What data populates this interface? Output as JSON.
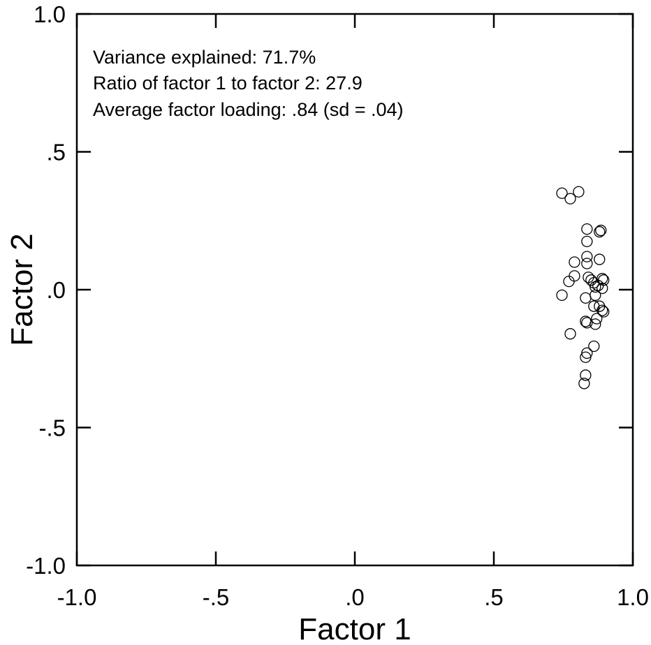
{
  "chart_data": {
    "type": "scatter",
    "xlabel": "Factor 1",
    "ylabel": "Factor 2",
    "xlim": [
      -1.0,
      1.0
    ],
    "ylim": [
      -1.0,
      1.0
    ],
    "x_ticks": [
      -1.0,
      -0.5,
      0.0,
      0.5,
      1.0
    ],
    "y_ticks": [
      -1.0,
      -0.5,
      0.0,
      0.5,
      1.0
    ],
    "x_tick_labels": [
      "-1.0",
      "-.5",
      ".0",
      ".5",
      "1.0"
    ],
    "y_tick_labels": [
      "-1.0",
      "-.5",
      ".0",
      ".5",
      "1.0"
    ],
    "grid": false,
    "annotations": [
      "Variance explained: 71.7%",
      "Ratio of factor 1 to factor 2: 27.9",
      "Average factor loading: .84 (sd = .04)"
    ],
    "marker": "open-circle",
    "points": [
      {
        "x": 0.745,
        "y": 0.35
      },
      {
        "x": 0.775,
        "y": 0.33
      },
      {
        "x": 0.805,
        "y": 0.355
      },
      {
        "x": 0.835,
        "y": 0.22
      },
      {
        "x": 0.835,
        "y": 0.175
      },
      {
        "x": 0.835,
        "y": 0.12
      },
      {
        "x": 0.835,
        "y": 0.095
      },
      {
        "x": 0.885,
        "y": 0.215
      },
      {
        "x": 0.88,
        "y": 0.21
      },
      {
        "x": 0.88,
        "y": 0.11
      },
      {
        "x": 0.79,
        "y": 0.1
      },
      {
        "x": 0.79,
        "y": 0.05
      },
      {
        "x": 0.77,
        "y": 0.03
      },
      {
        "x": 0.84,
        "y": 0.045
      },
      {
        "x": 0.85,
        "y": 0.035
      },
      {
        "x": 0.86,
        "y": 0.025
      },
      {
        "x": 0.865,
        "y": 0.01
      },
      {
        "x": 0.875,
        "y": 0.015
      },
      {
        "x": 0.89,
        "y": 0.04
      },
      {
        "x": 0.895,
        "y": 0.035
      },
      {
        "x": 0.89,
        "y": 0.005
      },
      {
        "x": 0.745,
        "y": -0.02
      },
      {
        "x": 0.83,
        "y": -0.03
      },
      {
        "x": 0.865,
        "y": -0.02
      },
      {
        "x": 0.86,
        "y": -0.06
      },
      {
        "x": 0.88,
        "y": -0.06
      },
      {
        "x": 0.89,
        "y": -0.075
      },
      {
        "x": 0.895,
        "y": -0.08
      },
      {
        "x": 0.83,
        "y": -0.115
      },
      {
        "x": 0.835,
        "y": -0.12
      },
      {
        "x": 0.87,
        "y": -0.105
      },
      {
        "x": 0.865,
        "y": -0.125
      },
      {
        "x": 0.775,
        "y": -0.16
      },
      {
        "x": 0.86,
        "y": -0.205
      },
      {
        "x": 0.835,
        "y": -0.23
      },
      {
        "x": 0.83,
        "y": -0.245
      },
      {
        "x": 0.83,
        "y": -0.31
      },
      {
        "x": 0.825,
        "y": -0.34
      }
    ]
  }
}
